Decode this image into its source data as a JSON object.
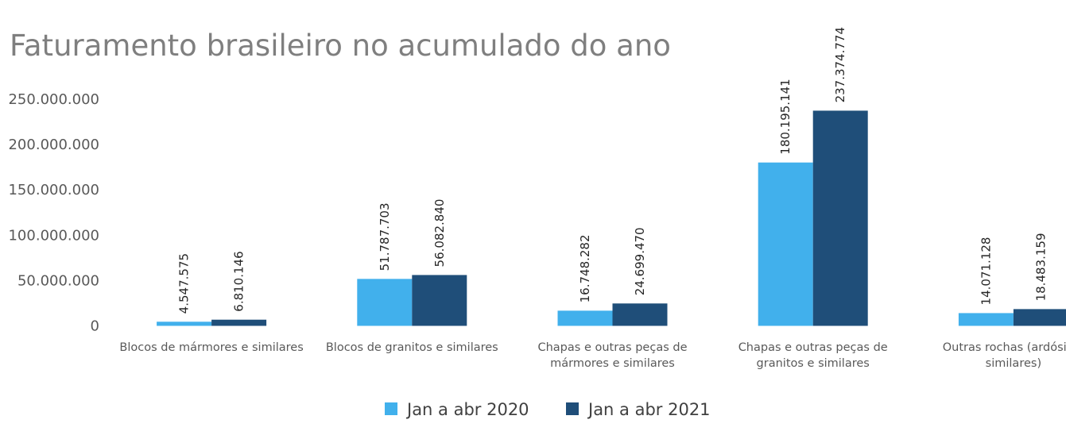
{
  "chart_data": {
    "type": "bar",
    "title": "Faturamento brasileiro no acumulado do ano",
    "xlabel": "",
    "ylabel": "",
    "ylim": [
      0,
      250000000
    ],
    "yticks": [
      0,
      50000000,
      100000000,
      150000000,
      200000000,
      250000000
    ],
    "ytick_labels": [
      "0",
      "50.000.000",
      "100.000.000",
      "150.000.000",
      "200.000.000",
      "250.000.000"
    ],
    "grid": false,
    "legend_position": "bottom",
    "categories": [
      [
        "Blocos de mármores e similares"
      ],
      [
        "Blocos de granitos e similares"
      ],
      [
        "Chapas e outras peças de",
        "mármores e similares"
      ],
      [
        "Chapas e outras peças de",
        "granitos e similares"
      ],
      [
        "Outras rochas (ardósia e",
        "similares)"
      ]
    ],
    "series": [
      {
        "name": "Jan a abr 2020",
        "color": "#41b0ec",
        "values": [
          4547575,
          51787703,
          16748282,
          180195141,
          14071128
        ],
        "labels": [
          "4.547.575",
          "51.787.703",
          "16.748.282",
          "180.195.141",
          "14.071.128"
        ]
      },
      {
        "name": "Jan a abr 2021",
        "color": "#1f4e79",
        "values": [
          6810146,
          56082840,
          24699470,
          237374774,
          18483159
        ],
        "labels": [
          "6.810.146",
          "56.082.840",
          "24.699.470",
          "237.374.774",
          "18.483.159"
        ]
      }
    ]
  }
}
